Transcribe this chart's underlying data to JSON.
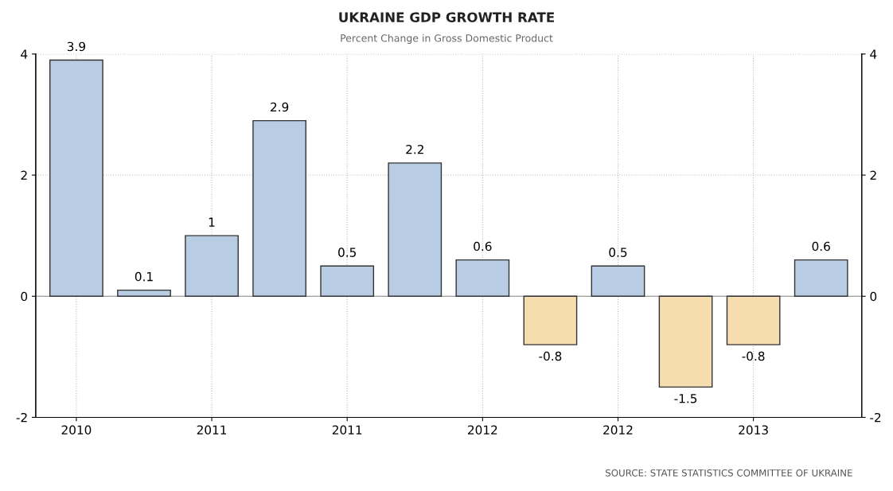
{
  "chart_data": {
    "type": "bar",
    "title": "UKRAINE GDP GROWTH RATE",
    "subtitle": "Percent Change in Gross Domestic Product",
    "categories": [
      "2010",
      null,
      "2011",
      null,
      "2011",
      null,
      "2012",
      null,
      "2012",
      null,
      "2013",
      null
    ],
    "values": [
      3.9,
      0.1,
      1,
      2.9,
      0.5,
      2.2,
      0.6,
      -0.8,
      0.5,
      -1.5,
      -0.8,
      0.6
    ],
    "colors": [
      "#b8cce4",
      "#b8cce4",
      "#b8cce4",
      "#b8cce4",
      "#b8cce4",
      "#b8cce4",
      "#b8cce4",
      "#f5ddb0",
      "#b8cce4",
      "#f5ddb0",
      "#f5ddb0",
      "#b8cce4"
    ],
    "data_labels": true,
    "ylim": [
      -2,
      4
    ],
    "yticks": [
      -2,
      0,
      2,
      4
    ],
    "y2lim": [
      -2,
      4
    ],
    "y2ticks": [
      -2,
      0,
      2,
      4
    ],
    "grid": true,
    "annotations": [
      "SOURCE: STATE STATISTICS COMMITTEE OF UKRAINE"
    ]
  }
}
